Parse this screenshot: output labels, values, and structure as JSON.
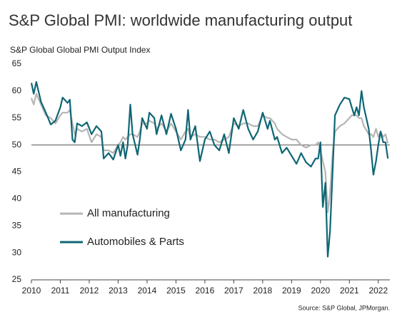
{
  "chart_data": {
    "type": "line",
    "title": "S&P Global PMI: worldwide manufacturing output",
    "subtitle": "S&P Global Global PMI Output Index",
    "source": "Source: S&P Global, JPMorgan.",
    "x": [
      2010.0,
      2010.08,
      2010.17,
      2010.33,
      2010.5,
      2010.67,
      2010.83,
      2011.0,
      2011.08,
      2011.25,
      2011.33,
      2011.42,
      2011.5,
      2011.58,
      2011.75,
      2011.92,
      2012.08,
      2012.25,
      2012.42,
      2012.5,
      2012.67,
      2012.83,
      2013.0,
      2013.08,
      2013.17,
      2013.25,
      2013.33,
      2013.42,
      2013.5,
      2013.67,
      2013.75,
      2013.83,
      2014.0,
      2014.08,
      2014.25,
      2014.33,
      2014.5,
      2014.67,
      2014.83,
      2015.0,
      2015.17,
      2015.33,
      2015.42,
      2015.5,
      2015.67,
      2015.83,
      2016.0,
      2016.17,
      2016.33,
      2016.5,
      2016.67,
      2016.83,
      2017.0,
      2017.17,
      2017.33,
      2017.5,
      2017.67,
      2017.83,
      2018.0,
      2018.17,
      2018.25,
      2018.42,
      2018.5,
      2018.67,
      2018.83,
      2019.0,
      2019.17,
      2019.33,
      2019.5,
      2019.67,
      2019.83,
      2019.92,
      2020.0,
      2020.08,
      2020.17,
      2020.25,
      2020.33,
      2020.42,
      2020.5,
      2020.67,
      2020.83,
      2021.0,
      2021.08,
      2021.17,
      2021.25,
      2021.33,
      2021.42,
      2021.5,
      2021.67,
      2021.75,
      2021.83,
      2021.92,
      2022.0,
      2022.08,
      2022.17,
      2022.25,
      2022.33
    ],
    "series": [
      {
        "name": "All manufacturing",
        "color": "#b5b5b5",
        "values": [
          58.7,
          57.5,
          59.5,
          57.5,
          55.5,
          55,
          54,
          55.5,
          56,
          56,
          56.5,
          54,
          52,
          53,
          52.5,
          53,
          50.5,
          52,
          51.5,
          49,
          49,
          48.5,
          50,
          50.5,
          51.5,
          51,
          51.5,
          52,
          52,
          51.5,
          52.5,
          54,
          54,
          54.5,
          54,
          53,
          54,
          52.5,
          54,
          52.5,
          51,
          52.5,
          53,
          51.5,
          52,
          51.5,
          51.5,
          51,
          51,
          50.5,
          51,
          51.5,
          54,
          53.5,
          54,
          54,
          53.5,
          53.5,
          55.5,
          55,
          55,
          54,
          53,
          52,
          51.5,
          51,
          51,
          50,
          49.5,
          50,
          50,
          50.5,
          49,
          47,
          45,
          37.5,
          41,
          48.5,
          52.5,
          53.5,
          54,
          55,
          55.5,
          55.5,
          55.5,
          55,
          55,
          53.5,
          52,
          52,
          51.5,
          53,
          51.5,
          52.5,
          51.5,
          52,
          50.3
        ]
      },
      {
        "name": "Automobiles & Parts",
        "color": "#0e6674",
        "values": [
          61.5,
          59.5,
          61.7,
          58,
          56,
          53.8,
          54.5,
          57,
          58.8,
          57.8,
          58.4,
          51,
          50.5,
          54,
          53.5,
          54.2,
          52,
          53.5,
          52.5,
          47.5,
          48.5,
          47.3,
          50,
          48,
          50.5,
          47.5,
          50,
          57.5,
          52,
          48.2,
          51,
          55,
          53,
          56,
          55,
          52,
          55.5,
          52,
          55.8,
          53,
          49,
          51,
          56.5,
          51,
          53.5,
          47,
          51,
          52.5,
          50,
          49,
          52,
          48.5,
          55,
          53,
          56.5,
          53,
          51,
          52.5,
          56,
          53,
          54.5,
          51,
          51.5,
          48.5,
          49.5,
          48,
          46.5,
          48.5,
          46.8,
          46,
          47.5,
          47.5,
          50.5,
          38.5,
          43,
          29.3,
          34,
          45,
          55.5,
          57.5,
          58.8,
          58.5,
          57,
          55.5,
          57,
          55.5,
          60,
          57,
          53,
          49,
          44.5,
          47,
          50,
          52.5,
          50.5,
          50.5,
          47.5
        ]
      }
    ],
    "xlim": [
      2010,
      2022.4
    ],
    "xticks": [
      2010,
      2011,
      2012,
      2013,
      2014,
      2015,
      2016,
      2017,
      2018,
      2019,
      2020,
      2021,
      2022
    ],
    "ylim": [
      25,
      65
    ],
    "yticks": [
      25,
      30,
      35,
      40,
      45,
      50,
      55,
      60,
      65
    ],
    "reference_line": 50,
    "legend": "lower-left"
  }
}
